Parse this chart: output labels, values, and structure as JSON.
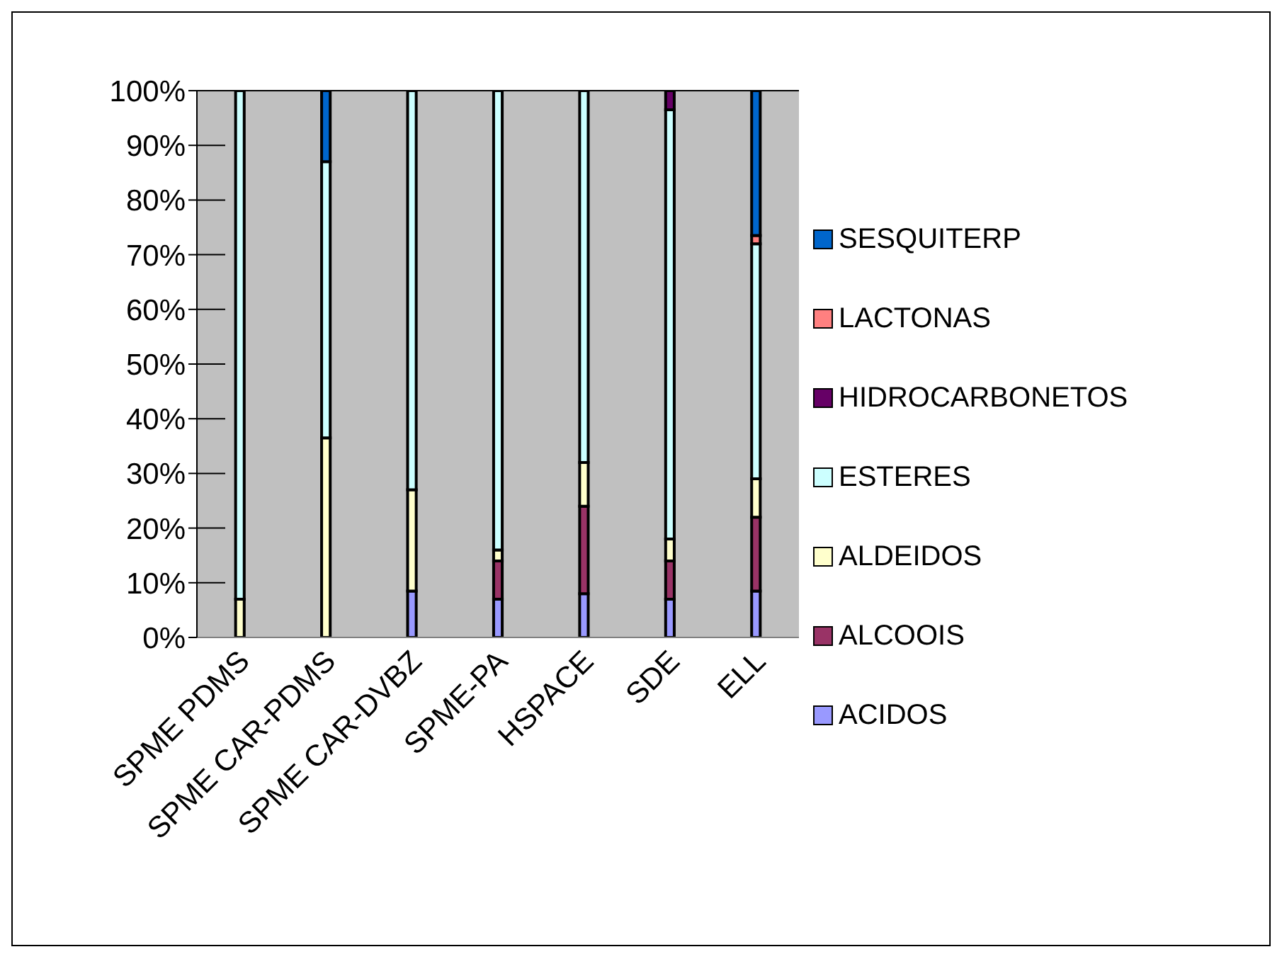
{
  "chart_data": {
    "type": "bar",
    "stacked": true,
    "categories": [
      "SPME PDMS",
      "SPME CAR-PDMS",
      "SPME CAR-DVBZ",
      "SPME-PA",
      "HSPACE",
      "SDE",
      "ELL"
    ],
    "series": [
      {
        "name": "ACIDOS",
        "color": "#9999ff",
        "values": [
          0,
          0,
          8.5,
          7,
          8,
          7,
          8.5
        ]
      },
      {
        "name": "ALCOOIS",
        "color": "#993366",
        "values": [
          0,
          0,
          0,
          7,
          16,
          7,
          13.5
        ]
      },
      {
        "name": "ALDEIDOS",
        "color": "#ffffcc",
        "values": [
          7,
          36.5,
          18.5,
          2,
          8,
          4,
          7
        ]
      },
      {
        "name": "ESTERES",
        "color": "#ccffff",
        "values": [
          93,
          50.5,
          73,
          84,
          68,
          78.5,
          43
        ]
      },
      {
        "name": "HIDROCARBONETOS",
        "color": "#660066",
        "values": [
          0,
          0,
          0,
          0,
          0,
          3.5,
          0
        ]
      },
      {
        "name": "LACTONAS",
        "color": "#ff8080",
        "values": [
          0,
          0,
          0,
          0,
          0,
          0,
          1.5
        ]
      },
      {
        "name": "SESQUITERP",
        "color": "#0066cc",
        "values": [
          0,
          13,
          0,
          0,
          0,
          0,
          26.5
        ]
      }
    ],
    "ylim": [
      0,
      100
    ],
    "yticks": [
      {
        "value": 0,
        "label": "0%"
      },
      {
        "value": 10,
        "label": "10%"
      },
      {
        "value": 20,
        "label": "20%"
      },
      {
        "value": 30,
        "label": "30%"
      },
      {
        "value": 40,
        "label": "40%"
      },
      {
        "value": 50,
        "label": "50%"
      },
      {
        "value": 60,
        "label": "60%"
      },
      {
        "value": 70,
        "label": "70%"
      },
      {
        "value": 80,
        "label": "80%"
      },
      {
        "value": 90,
        "label": "90%"
      },
      {
        "value": 100,
        "label": "100%"
      }
    ],
    "grid": "y",
    "legend": "right"
  }
}
